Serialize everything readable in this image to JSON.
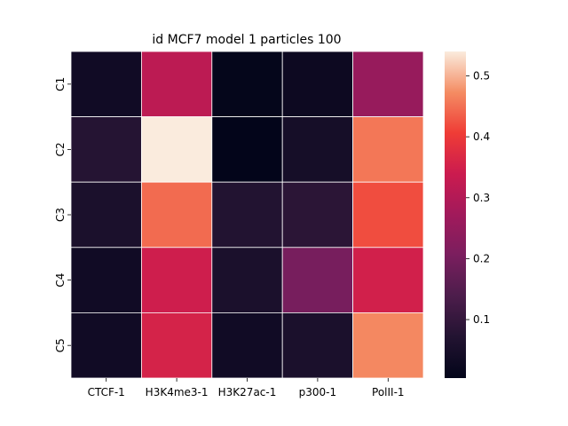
{
  "chart_data": {
    "type": "heatmap",
    "title": "id MCF7 model 1 particles 100",
    "x_categories": [
      "CTCF-1",
      "H3K4me3-1",
      "H3K27ac-1",
      "p300-1",
      "PolII-1"
    ],
    "y_categories": [
      "C1",
      "C2",
      "C3",
      "C4",
      "C5"
    ],
    "values": [
      [
        0.035,
        0.315,
        0.008,
        0.025,
        0.255
      ],
      [
        0.075,
        0.54,
        0.004,
        0.045,
        0.455
      ],
      [
        0.055,
        0.445,
        0.07,
        0.085,
        0.42
      ],
      [
        0.035,
        0.345,
        0.055,
        0.2,
        0.35
      ],
      [
        0.035,
        0.355,
        0.035,
        0.055,
        0.47
      ]
    ],
    "vmin": 0.004,
    "vmax": 0.54,
    "colorbar_ticks": [
      0.1,
      0.2,
      0.3,
      0.4,
      0.5
    ],
    "colorbar_tick_labels": [
      "0.1",
      "0.2",
      "0.3",
      "0.4",
      "0.5"
    ],
    "colormap": "rocket",
    "grid_lines_color": "#ffffff"
  }
}
